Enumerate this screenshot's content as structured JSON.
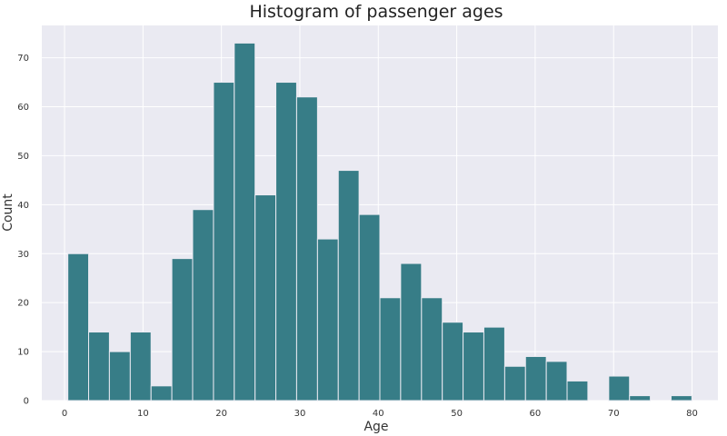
{
  "chart_data": {
    "type": "bar",
    "title": "Histogram of passenger ages",
    "xlabel": "Age",
    "ylabel": "Count",
    "xlim": [
      -2.9,
      83.3
    ],
    "ylim": [
      0,
      76.6
    ],
    "xticks": [
      0,
      10,
      20,
      30,
      40,
      50,
      60,
      70,
      80
    ],
    "yticks": [
      0,
      10,
      20,
      30,
      40,
      50,
      60,
      70
    ],
    "grid": true,
    "bins": {
      "edges": [
        0.42,
        3.07,
        5.72,
        8.38,
        11.03,
        13.68,
        16.33,
        18.99,
        21.64,
        24.29,
        26.94,
        29.59,
        32.25,
        34.9,
        37.55,
        40.2,
        42.85,
        45.51,
        48.16,
        50.81,
        53.46,
        56.12,
        58.77,
        61.42,
        64.07,
        66.72,
        69.38,
        72.03,
        74.68,
        77.33,
        79.98
      ],
      "counts": [
        30,
        14,
        10,
        14,
        3,
        29,
        39,
        65,
        73,
        42,
        65,
        62,
        33,
        47,
        38,
        21,
        28,
        21,
        16,
        14,
        15,
        7,
        9,
        8,
        4,
        0,
        5,
        1,
        0,
        1
      ]
    },
    "colors": {
      "bar_fill": "#377d87",
      "bar_edge": "#eaeaf2",
      "plot_background": "#eaeaf2",
      "grid": "#ffffff"
    }
  }
}
